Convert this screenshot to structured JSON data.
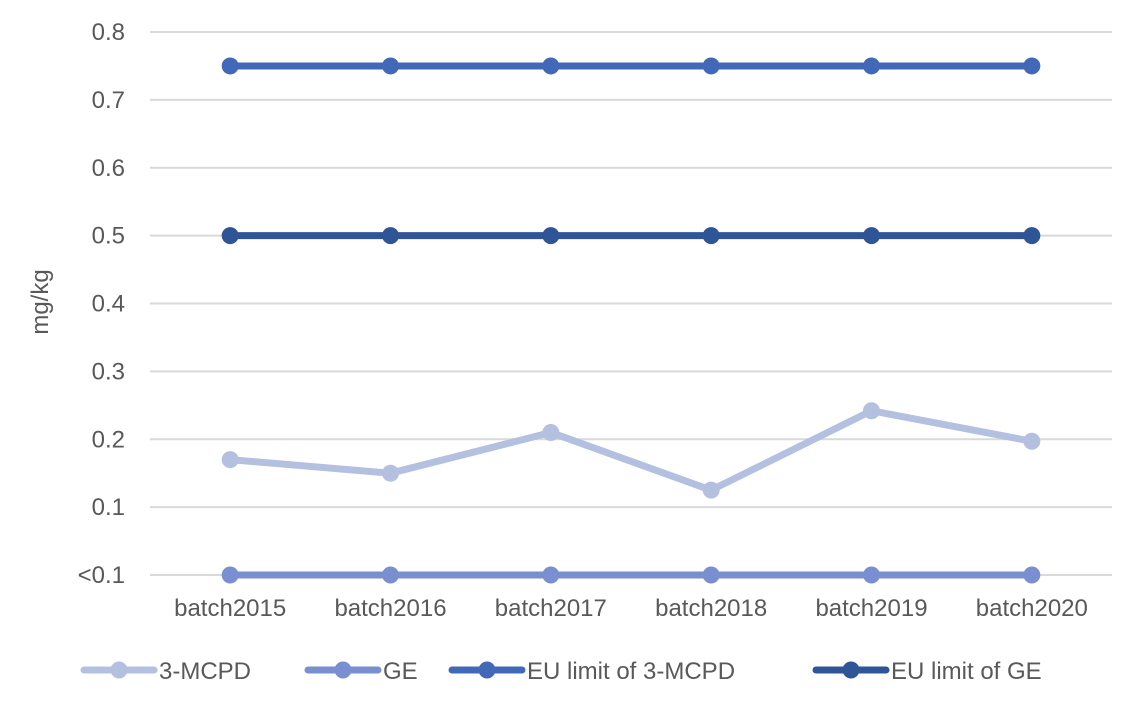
{
  "chart_data": {
    "type": "line",
    "title": "",
    "xlabel": "",
    "ylabel": "mg/kg",
    "ylim": [
      0,
      0.8
    ],
    "yticks": [
      {
        "value": 0.0,
        "label": "<0.1"
      },
      {
        "value": 0.1,
        "label": "0.1"
      },
      {
        "value": 0.2,
        "label": "0.2"
      },
      {
        "value": 0.3,
        "label": "0.3"
      },
      {
        "value": 0.4,
        "label": "0.4"
      },
      {
        "value": 0.5,
        "label": "0.5"
      },
      {
        "value": 0.6,
        "label": "0.6"
      },
      {
        "value": 0.7,
        "label": "0.7"
      },
      {
        "value": 0.8,
        "label": "0.8"
      }
    ],
    "categories": [
      "batch2015",
      "batch2016",
      "batch2017",
      "batch2018",
      "batch2019",
      "batch2020"
    ],
    "grid": true,
    "legend_position": "bottom",
    "series": [
      {
        "name": "3-MCPD",
        "color": "#b4c0e0",
        "values": [
          0.17,
          0.15,
          0.21,
          0.125,
          0.242,
          0.197
        ]
      },
      {
        "name": "GE",
        "color": "#7a8fcf",
        "values": [
          0.0,
          0.0,
          0.0,
          0.0,
          0.0,
          0.0
        ]
      },
      {
        "name": "EU limit of 3-MCPD",
        "color": "#4169b8",
        "values": [
          0.75,
          0.75,
          0.75,
          0.75,
          0.75,
          0.75
        ]
      },
      {
        "name": "EU limit of GE",
        "color": "#2f5597",
        "values": [
          0.5,
          0.5,
          0.5,
          0.5,
          0.5,
          0.5
        ]
      }
    ]
  }
}
